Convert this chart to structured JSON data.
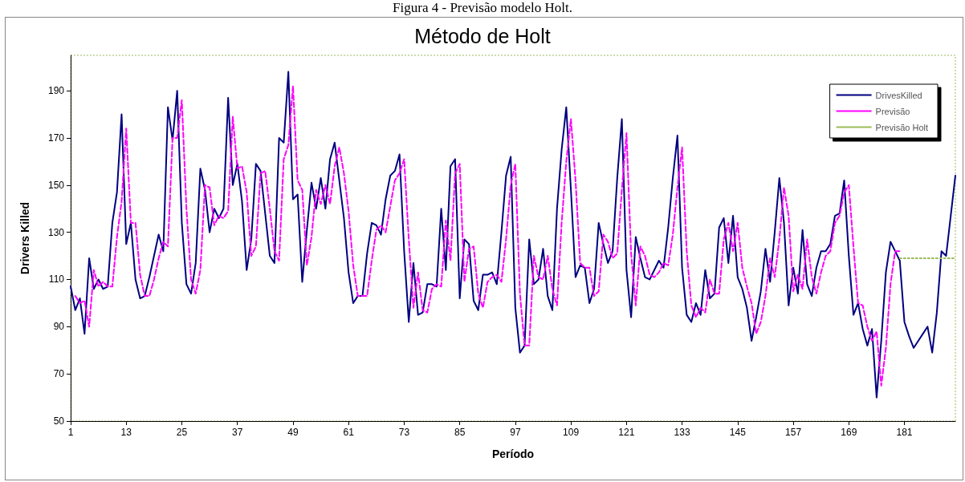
{
  "chart_data": {
    "type": "line",
    "title": "Método de Holt",
    "xlabel": "Período",
    "ylabel": "Drivers Killed",
    "annotations": [
      "Figura 4 - Previsão modelo Holt."
    ],
    "x": [
      1,
      2,
      3,
      4,
      5,
      6,
      7,
      8,
      9,
      10,
      11,
      12,
      13,
      14,
      15,
      16,
      17,
      18,
      19,
      20,
      21,
      22,
      23,
      24,
      25,
      26,
      27,
      28,
      29,
      30,
      31,
      32,
      33,
      34,
      35,
      36,
      37,
      38,
      39,
      40,
      41,
      42,
      43,
      44,
      45,
      46,
      47,
      48,
      49,
      50,
      51,
      52,
      53,
      54,
      55,
      56,
      57,
      58,
      59,
      60,
      61,
      62,
      63,
      64,
      65,
      66,
      67,
      68,
      69,
      70,
      71,
      72,
      73,
      74,
      75,
      76,
      77,
      78,
      79,
      80,
      81,
      82,
      83,
      84,
      85,
      86,
      87,
      88,
      89,
      90,
      91,
      92,
      93,
      94,
      95,
      96,
      97,
      98,
      99,
      100,
      101,
      102,
      103,
      104,
      105,
      106,
      107,
      108,
      109,
      110,
      111,
      112,
      113,
      114,
      115,
      116,
      117,
      118,
      119,
      120,
      121,
      122,
      123,
      124,
      125,
      126,
      127,
      128,
      129,
      130,
      131,
      132,
      133,
      134,
      135,
      136,
      137,
      138,
      139,
      140,
      141,
      142,
      143,
      144,
      145,
      146,
      147,
      148,
      149,
      150,
      151,
      152,
      153,
      154,
      155,
      156,
      157,
      158,
      159,
      160,
      161,
      162,
      163,
      164,
      165,
      166,
      167,
      168,
      169,
      170,
      171,
      172,
      173,
      174,
      175,
      176,
      177,
      178,
      179,
      180,
      181,
      182,
      183,
      184,
      185,
      186,
      187,
      188,
      189,
      190,
      191,
      192
    ],
    "xlim": [
      1,
      192
    ],
    "xticks": [
      1,
      13,
      25,
      37,
      49,
      61,
      73,
      85,
      97,
      109,
      121,
      133,
      145,
      157,
      169,
      181
    ],
    "ylim": [
      50,
      205
    ],
    "yticks": [
      50,
      70,
      90,
      110,
      130,
      150,
      170,
      190
    ],
    "legend": "top right",
    "marker": "none",
    "grid": false,
    "series": [
      {
        "name": "DrivesKilled",
        "color": "#000080",
        "line_style": "solid",
        "values": [
          107,
          97,
          102,
          87,
          119,
          106,
          110,
          106,
          107,
          134,
          147,
          180,
          125,
          134,
          110,
          102,
          103,
          111,
          120,
          129,
          122,
          183,
          169,
          190,
          134,
          108,
          104,
          117,
          157,
          148,
          130,
          140,
          136,
          140,
          187,
          150,
          159,
          143,
          114,
          127,
          159,
          156,
          138,
          120,
          117,
          170,
          168,
          198,
          144,
          146,
          109,
          131,
          151,
          140,
          153,
          140,
          161,
          168,
          152,
          136,
          113,
          100,
          103,
          103,
          121,
          134,
          133,
          129,
          144,
          154,
          156,
          163,
          122,
          92,
          117,
          95,
          96,
          108,
          108,
          107,
          140,
          114,
          158,
          161,
          102,
          127,
          125,
          101,
          97,
          112,
          112,
          113,
          108,
          130,
          154,
          162,
          98,
          79,
          82,
          127,
          108,
          110,
          123,
          103,
          97,
          140,
          165,
          183,
          148,
          111,
          116,
          115,
          100,
          106,
          134,
          125,
          117,
          122,
          153,
          178,
          114,
          94,
          128,
          119,
          111,
          110,
          114,
          118,
          115,
          132,
          153,
          171,
          115,
          95,
          92,
          100,
          95,
          114,
          102,
          104,
          132,
          136,
          117,
          137,
          111,
          106,
          98,
          84,
          94,
          105,
          123,
          109,
          130,
          153,
          134,
          99,
          115,
          104,
          131,
          108,
          103,
          115,
          122,
          122,
          125,
          137,
          138,
          152,
          120,
          95,
          100,
          89,
          82,
          89,
          60,
          84,
          113,
          126,
          122,
          118,
          92,
          86,
          81,
          84,
          87,
          90,
          79,
          96,
          122,
          120,
          137,
          154
        ]
      },
      {
        "name": "Previsão",
        "color": "#ff00ff",
        "line_style": "dashed",
        "values": [
          null,
          103,
          100,
          101,
          90,
          114,
          107,
          109,
          107,
          107,
          128,
          143,
          174,
          134,
          134,
          112,
          103,
          103,
          110,
          119,
          126,
          124,
          170,
          170,
          186,
          140,
          110,
          104,
          114,
          150,
          149,
          133,
          137,
          136,
          139,
          179,
          157,
          158,
          147,
          120,
          124,
          155,
          156,
          140,
          122,
          118,
          161,
          167,
          192,
          152,
          148,
          116,
          128,
          148,
          142,
          150,
          142,
          158,
          166,
          155,
          139,
          116,
          103,
          103,
          103,
          118,
          131,
          133,
          130,
          141,
          152,
          155,
          161,
          127,
          98,
          113,
          97,
          96,
          106,
          108,
          107,
          135,
          118,
          155,
          159,
          109,
          123,
          124,
          104,
          98,
          109,
          111,
          112,
          109,
          127,
          150,
          159,
          104,
          82,
          82,
          120,
          111,
          110,
          120,
          106,
          99,
          134,
          160,
          178,
          152,
          117,
          115,
          115,
          103,
          105,
          129,
          126,
          119,
          121,
          148,
          172,
          121,
          99,
          124,
          120,
          112,
          111,
          113,
          117,
          116,
          129,
          149,
          166,
          122,
          99,
          94,
          98,
          96,
          110,
          104,
          104,
          127,
          134,
          122,
          134,
          115,
          107,
          100,
          87,
          92,
          103,
          119,
          111,
          127,
          149,
          137,
          105,
          112,
          106,
          127,
          111,
          104,
          113,
          120,
          122,
          134,
          137,
          147,
          150,
          124,
          100,
          99,
          90,
          84,
          88,
          65,
          81,
          108,
          122,
          122,
          null,
          null,
          null,
          null,
          null,
          null,
          null,
          null,
          null,
          null,
          null,
          null
        ]
      },
      {
        "name": "Previsão Holt",
        "color": "#9bbb59",
        "line_style": "dotted",
        "values": [
          null,
          null,
          null,
          null,
          null,
          null,
          null,
          null,
          null,
          null,
          null,
          null,
          null,
          null,
          null,
          null,
          null,
          null,
          null,
          null,
          null,
          null,
          null,
          null,
          null,
          null,
          null,
          null,
          null,
          null,
          null,
          null,
          null,
          null,
          null,
          null,
          null,
          null,
          null,
          null,
          null,
          null,
          null,
          null,
          null,
          null,
          null,
          null,
          null,
          null,
          null,
          null,
          null,
          null,
          null,
          null,
          null,
          null,
          null,
          null,
          null,
          null,
          null,
          null,
          null,
          null,
          null,
          null,
          null,
          null,
          null,
          null,
          null,
          null,
          null,
          null,
          null,
          null,
          null,
          null,
          null,
          null,
          null,
          null,
          null,
          null,
          null,
          null,
          null,
          null,
          null,
          null,
          null,
          null,
          null,
          null,
          null,
          null,
          null,
          null,
          null,
          null,
          null,
          null,
          null,
          null,
          null,
          null,
          null,
          null,
          null,
          null,
          null,
          null,
          null,
          null,
          null,
          null,
          null,
          null,
          null,
          null,
          null,
          null,
          null,
          null,
          null,
          null,
          null,
          null,
          null,
          null,
          null,
          null,
          null,
          null,
          null,
          null,
          null,
          null,
          null,
          null,
          null,
          null,
          null,
          null,
          null,
          null,
          null,
          null,
          null,
          null,
          null,
          null,
          null,
          null,
          null,
          null,
          null,
          null,
          null,
          null,
          null,
          null,
          null,
          null,
          null,
          null,
          null,
          null,
          null,
          null,
          null,
          null,
          null,
          null,
          null,
          null,
          null,
          119,
          119,
          119,
          119,
          119,
          119,
          119,
          119,
          119,
          119,
          119,
          119,
          119
        ]
      }
    ]
  }
}
